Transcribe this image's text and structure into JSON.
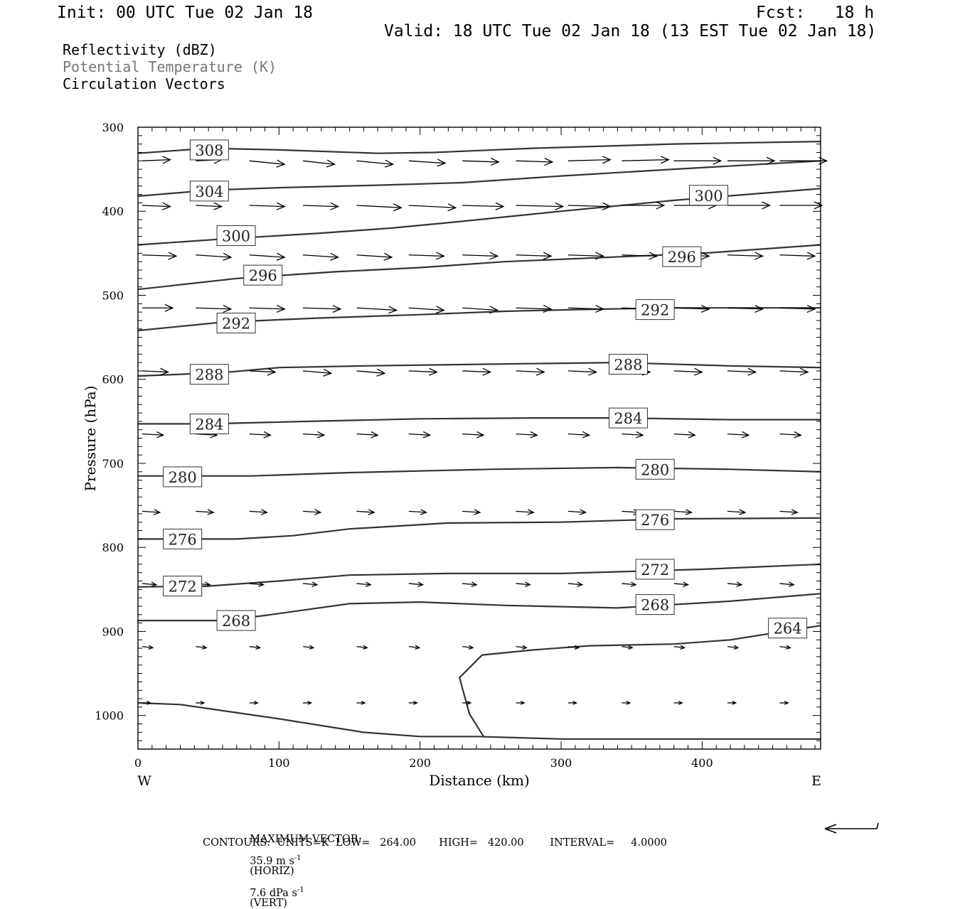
{
  "header": {
    "init": "Init: 00 UTC Tue 02 Jan 18",
    "fcst": "Fcst:   18 h",
    "valid": "Valid: 18 UTC Tue 02 Jan 18 (13 EST Tue 02 Jan 18)"
  },
  "fields": {
    "reflectivity": "Reflectivity (dBZ)",
    "theta": "Potential Temperature (K)",
    "vectors": "Circulation Vectors"
  },
  "footer": {
    "max_vector_label": "MAXIMUM VECTOR:",
    "max_horiz": "35.9 m s",
    "horiz_tag": "(HORIZ)",
    "max_vert": "7.6 dPa s",
    "vert_tag": "(VERT)",
    "exp": "-1",
    "contours": "CONTOURS:  UNITS=K  LOW=   264.00       HIGH=   420.00        INTERVAL=     4.0000"
  },
  "chart_data": {
    "type": "line",
    "xlabel": "Distance (km)",
    "ylabel": "Pressure (hPa)",
    "xlim": [
      0,
      484
    ],
    "ylim": [
      1040,
      300
    ],
    "x_ticks": [
      0,
      100,
      200,
      300,
      400
    ],
    "y_ticks": [
      300,
      400,
      500,
      600,
      700,
      800,
      900,
      1000
    ],
    "left_end": "W",
    "right_end": "E",
    "colors": {
      "contour": "#333333",
      "vector": "#000000",
      "frame": "#000000"
    },
    "isentropes": [
      {
        "theta": 308,
        "points": [
          [
            0,
            331
          ],
          [
            50,
            325
          ],
          [
            100,
            327
          ],
          [
            170,
            331
          ],
          [
            210,
            330
          ],
          [
            280,
            325
          ],
          [
            380,
            320
          ],
          [
            484,
            317
          ]
        ]
      },
      {
        "theta": 304,
        "points": [
          [
            0,
            382
          ],
          [
            50,
            375
          ],
          [
            100,
            372
          ],
          [
            170,
            369
          ],
          [
            230,
            366
          ],
          [
            300,
            358
          ],
          [
            380,
            350
          ],
          [
            484,
            340
          ]
        ]
      },
      {
        "theta": 300,
        "points": [
          [
            0,
            440
          ],
          [
            60,
            433
          ],
          [
            130,
            426
          ],
          [
            180,
            420
          ],
          [
            230,
            412
          ],
          [
            300,
            400
          ],
          [
            380,
            387
          ],
          [
            484,
            373
          ]
        ]
      },
      {
        "theta": 296,
        "points": [
          [
            0,
            493
          ],
          [
            70,
            480
          ],
          [
            140,
            472
          ],
          [
            200,
            467
          ],
          [
            260,
            460
          ],
          [
            330,
            455
          ],
          [
            400,
            450
          ],
          [
            484,
            440
          ]
        ]
      },
      {
        "theta": 292,
        "points": [
          [
            0,
            542
          ],
          [
            60,
            532
          ],
          [
            130,
            527
          ],
          [
            200,
            523
          ],
          [
            260,
            519
          ],
          [
            310,
            517
          ],
          [
            380,
            515
          ],
          [
            484,
            515
          ]
        ]
      },
      {
        "theta": 288,
        "points": [
          [
            0,
            596
          ],
          [
            60,
            592
          ],
          [
            100,
            586
          ],
          [
            160,
            584
          ],
          [
            250,
            582
          ],
          [
            340,
            580
          ],
          [
            420,
            584
          ],
          [
            484,
            586
          ]
        ]
      },
      {
        "theta": 284,
        "points": [
          [
            0,
            653
          ],
          [
            50,
            653
          ],
          [
            120,
            650
          ],
          [
            200,
            647
          ],
          [
            280,
            646
          ],
          [
            340,
            646
          ],
          [
            420,
            648
          ],
          [
            484,
            648
          ]
        ]
      },
      {
        "theta": 280,
        "points": [
          [
            0,
            715
          ],
          [
            80,
            715
          ],
          [
            150,
            711
          ],
          [
            250,
            707
          ],
          [
            340,
            705
          ],
          [
            420,
            707
          ],
          [
            484,
            710
          ]
        ]
      },
      {
        "theta": 276,
        "points": [
          [
            0,
            790
          ],
          [
            70,
            790
          ],
          [
            110,
            786
          ],
          [
            150,
            778
          ],
          [
            220,
            771
          ],
          [
            300,
            770
          ],
          [
            380,
            766
          ],
          [
            484,
            765
          ]
        ]
      },
      {
        "theta": 272,
        "points": [
          [
            0,
            847
          ],
          [
            50,
            846
          ],
          [
            100,
            840
          ],
          [
            150,
            833
          ],
          [
            220,
            831
          ],
          [
            300,
            831
          ],
          [
            400,
            826
          ],
          [
            484,
            820
          ]
        ]
      },
      {
        "theta": 268,
        "points": [
          [
            0,
            887
          ],
          [
            60,
            887
          ],
          [
            90,
            881
          ],
          [
            150,
            867
          ],
          [
            200,
            865
          ],
          [
            260,
            869
          ],
          [
            340,
            872
          ],
          [
            420,
            864
          ],
          [
            484,
            855
          ]
        ]
      },
      {
        "theta": 264,
        "points": [
          [
            0,
            985
          ],
          [
            30,
            987
          ],
          [
            100,
            1004
          ],
          [
            160,
            1020
          ],
          [
            200,
            1025
          ],
          [
            240,
            1025
          ],
          [
            300,
            1028
          ],
          [
            400,
            1028
          ],
          [
            484,
            1028
          ]
        ]
      },
      {
        "theta": 264,
        "points": [
          [
            245,
            1025
          ],
          [
            235,
            998
          ],
          [
            228,
            955
          ],
          [
            244,
            928
          ],
          [
            280,
            922
          ],
          [
            320,
            917
          ],
          [
            380,
            915
          ],
          [
            420,
            910
          ],
          [
            484,
            893
          ]
        ]
      }
    ],
    "contour_labels": [
      {
        "theta": 308,
        "x": 37,
        "p": 327
      },
      {
        "theta": 304,
        "x": 37,
        "p": 376
      },
      {
        "theta": 300,
        "x": 56,
        "p": 429
      },
      {
        "theta": 300,
        "x": 391,
        "p": 381
      },
      {
        "theta": 296,
        "x": 75,
        "p": 476
      },
      {
        "theta": 296,
        "x": 372,
        "p": 454
      },
      {
        "theta": 292,
        "x": 56,
        "p": 533
      },
      {
        "theta": 292,
        "x": 353,
        "p": 517
      },
      {
        "theta": 288,
        "x": 37,
        "p": 594
      },
      {
        "theta": 288,
        "x": 334,
        "p": 582
      },
      {
        "theta": 284,
        "x": 37,
        "p": 653
      },
      {
        "theta": 284,
        "x": 334,
        "p": 646
      },
      {
        "theta": 280,
        "x": 18,
        "p": 716
      },
      {
        "theta": 280,
        "x": 353,
        "p": 707
      },
      {
        "theta": 276,
        "x": 18,
        "p": 790
      },
      {
        "theta": 276,
        "x": 353,
        "p": 767
      },
      {
        "theta": 272,
        "x": 18,
        "p": 846
      },
      {
        "theta": 272,
        "x": 353,
        "p": 826
      },
      {
        "theta": 268,
        "x": 56,
        "p": 887
      },
      {
        "theta": 268,
        "x": 353,
        "p": 868
      },
      {
        "theta": 264,
        "x": 447,
        "p": 896
      }
    ],
    "vectors": [
      {
        "p": 340,
        "x": [
          3,
          41,
          79,
          117,
          155,
          192,
          230,
          268,
          305,
          343,
          380,
          418,
          455
        ],
        "u": [
          24,
          22,
          30,
          27,
          31,
          31,
          31,
          31,
          36,
          40,
          40,
          40,
          40
        ],
        "v": [
          -1,
          -1,
          3,
          3,
          3,
          2,
          1,
          1,
          -1,
          -1,
          0,
          0,
          0
        ]
      },
      {
        "p": 393,
        "x": [
          3,
          41,
          79,
          117,
          155,
          192,
          230,
          268,
          305,
          343,
          380,
          418,
          455
        ],
        "u": [
          24,
          22,
          30,
          30,
          38,
          40,
          35,
          40,
          36,
          36,
          36,
          36,
          36
        ],
        "v": [
          1,
          1,
          1,
          1,
          2,
          2,
          1,
          1,
          1,
          0,
          0,
          0,
          0
        ]
      },
      {
        "p": 452,
        "x": [
          3,
          41,
          79,
          117,
          155,
          192,
          230,
          268,
          305,
          343,
          380,
          418,
          455
        ],
        "u": [
          29,
          30,
          30,
          30,
          30,
          30,
          30,
          30,
          30,
          30,
          30,
          30,
          30
        ],
        "v": [
          1,
          2,
          2,
          2,
          2,
          1,
          1,
          1,
          1,
          1,
          1,
          1,
          1
        ]
      },
      {
        "p": 515,
        "x": [
          3,
          41,
          79,
          117,
          155,
          192,
          230,
          268,
          305,
          343,
          380,
          418,
          455
        ],
        "u": [
          26,
          30,
          30,
          32,
          34,
          30,
          30,
          30,
          30,
          30,
          30,
          30,
          30
        ],
        "v": [
          0,
          1,
          1,
          1,
          2,
          2,
          2,
          1,
          1,
          1,
          1,
          1,
          1
        ]
      },
      {
        "p": 590,
        "x": [
          3,
          41,
          79,
          117,
          155,
          192,
          230,
          268,
          305,
          343,
          380,
          418,
          455
        ],
        "u": [
          22,
          22,
          22,
          24,
          24,
          24,
          24,
          24,
          24,
          24,
          24,
          24,
          24
        ],
        "v": [
          1,
          1,
          1,
          2,
          2,
          1,
          1,
          1,
          1,
          1,
          1,
          1,
          1
        ]
      },
      {
        "p": 665,
        "x": [
          3,
          41,
          79,
          117,
          155,
          192,
          230,
          268,
          305,
          343,
          380,
          418,
          455
        ],
        "u": [
          18,
          18,
          18,
          18,
          18,
          18,
          18,
          18,
          18,
          18,
          18,
          18,
          18
        ],
        "v": [
          1,
          1,
          1,
          1,
          1,
          1,
          1,
          1,
          1,
          1,
          1,
          1,
          1
        ]
      },
      {
        "p": 757,
        "x": [
          3,
          41,
          79,
          117,
          155,
          192,
          230,
          268,
          305,
          343,
          380,
          418,
          455
        ],
        "u": [
          15,
          15,
          15,
          15,
          15,
          15,
          15,
          15,
          15,
          15,
          15,
          15,
          15
        ],
        "v": [
          1,
          1,
          1,
          1,
          1,
          1,
          1,
          1,
          1,
          1,
          1,
          1,
          1
        ]
      },
      {
        "p": 843,
        "x": [
          3,
          41,
          79,
          117,
          155,
          192,
          230,
          268,
          305,
          343,
          380,
          418,
          455
        ],
        "u": [
          12,
          12,
          12,
          12,
          12,
          12,
          12,
          12,
          12,
          12,
          12,
          12,
          12
        ],
        "v": [
          1,
          1,
          1,
          1,
          1,
          1,
          1,
          1,
          1,
          1,
          1,
          1,
          1
        ]
      },
      {
        "p": 918,
        "x": [
          3,
          41,
          79,
          117,
          155,
          192,
          230,
          268,
          305,
          343,
          380,
          418,
          455
        ],
        "u": [
          9,
          9,
          9,
          9,
          9,
          9,
          9,
          9,
          9,
          9,
          9,
          9,
          9
        ],
        "v": [
          1,
          1,
          1,
          1,
          1,
          1,
          1,
          1,
          1,
          1,
          1,
          1,
          1
        ]
      },
      {
        "p": 985,
        "x": [
          3,
          41,
          79,
          117,
          155,
          192,
          230,
          268,
          305,
          343,
          380,
          418,
          455
        ],
        "u": [
          7,
          7,
          7,
          7,
          7,
          7,
          7,
          7,
          7,
          7,
          7,
          7,
          7
        ],
        "v": [
          0,
          0,
          0,
          0,
          0,
          0,
          0,
          0,
          0,
          0,
          0,
          0,
          0
        ]
      }
    ]
  }
}
